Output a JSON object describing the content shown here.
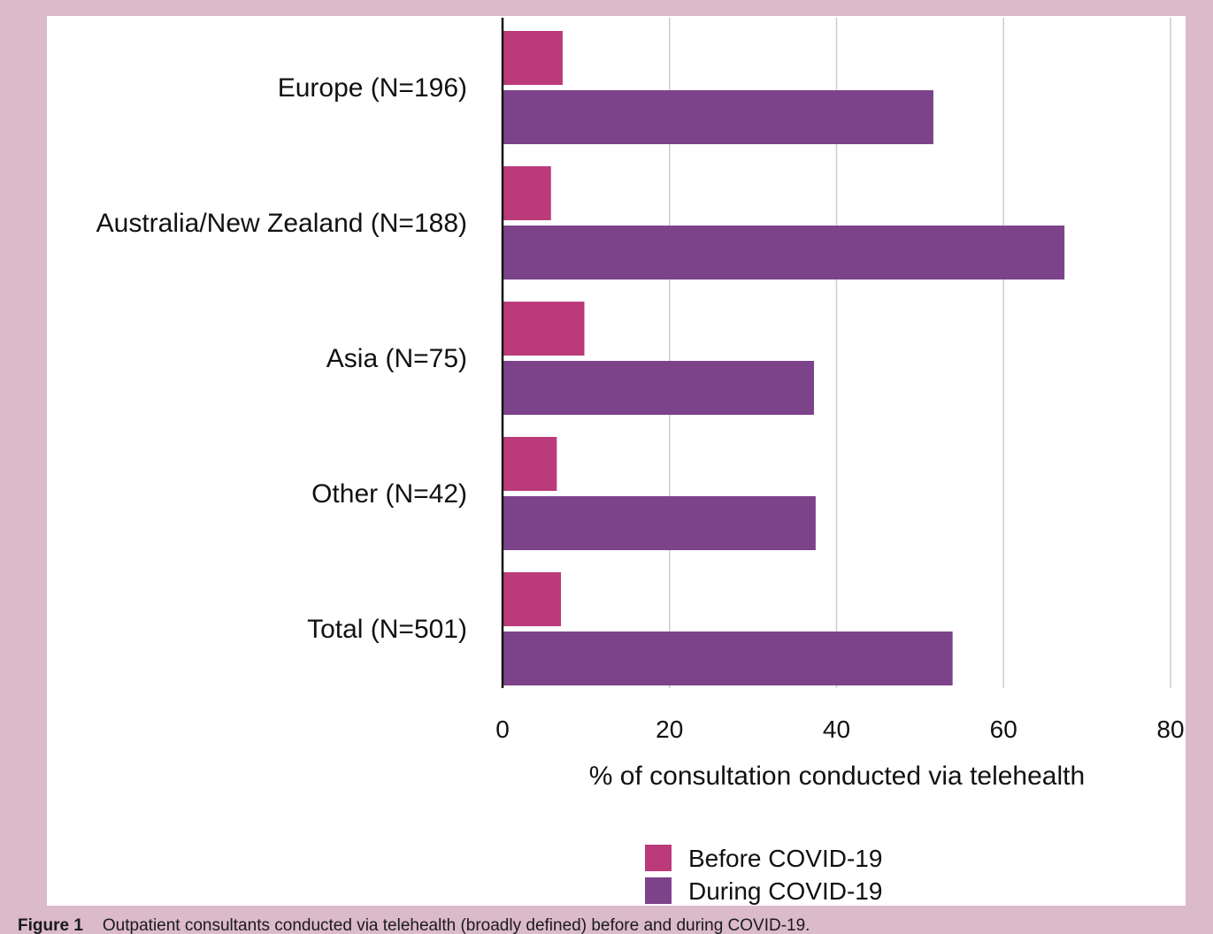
{
  "chart_data": {
    "type": "bar",
    "orientation": "horizontal",
    "categories": [
      "Europe (N=196)",
      "Australia/New Zealand (N=188)",
      "Asia (N=75)",
      "Other (N=42)",
      "Total (N=501)"
    ],
    "series": [
      {
        "name": "Before COVID-19",
        "values": [
          7.2,
          5.8,
          9.8,
          6.5,
          7.0
        ],
        "color": "#bb3a7a"
      },
      {
        "name": "During COVID-19",
        "values": [
          51.6,
          67.3,
          37.3,
          37.5,
          53.9
        ],
        "color": "#7c438b"
      }
    ],
    "xlabel": "% of consultation conducted via telehealth",
    "ylabel": "",
    "xlim": [
      0,
      80
    ],
    "xticks": [
      "0",
      "20",
      "40",
      "60",
      "80"
    ],
    "grid": "vertical",
    "legend": "bottom"
  },
  "caption": {
    "label": "Figure 1",
    "text": "Outpatient consultants conducted via telehealth (broadly defined) before and during COVID-19."
  },
  "colors": {
    "frame": "#dbbac9",
    "panel": "#ffffff",
    "grid": "#cccccc"
  }
}
